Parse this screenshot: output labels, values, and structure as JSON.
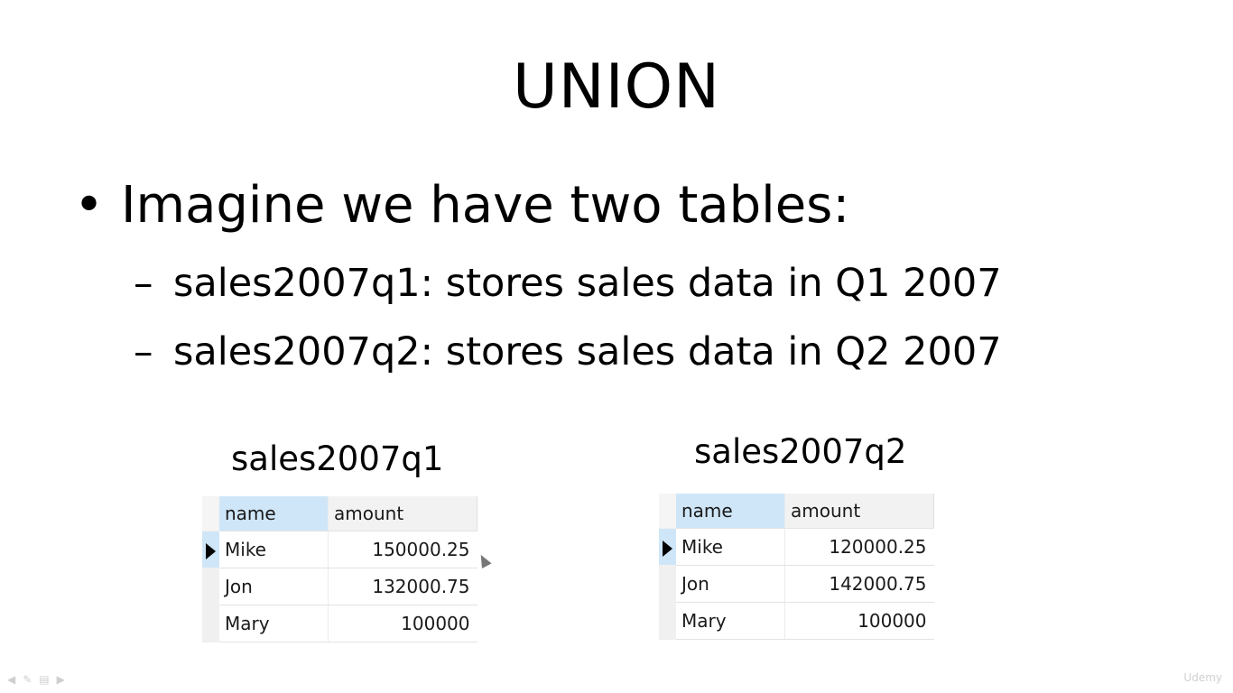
{
  "slide": {
    "title": "UNION",
    "bullet": "Imagine we have two tables:",
    "subbullets": [
      "sales2007q1: stores sales data in Q1 2007",
      "sales2007q2: stores sales data in Q2 2007"
    ],
    "bullet_glyph": "•",
    "dash_glyph": "–"
  },
  "tables": [
    {
      "caption": "sales2007q1",
      "columns": [
        "name",
        "amount"
      ],
      "rows": [
        {
          "name": "Mike",
          "amount": "150000.25"
        },
        {
          "name": "Jon",
          "amount": "132000.75"
        },
        {
          "name": "Mary",
          "amount": "100000"
        }
      ]
    },
    {
      "caption": "sales2007q2",
      "columns": [
        "name",
        "amount"
      ],
      "rows": [
        {
          "name": "Mike",
          "amount": "120000.25"
        },
        {
          "name": "Jon",
          "amount": "142000.75"
        },
        {
          "name": "Mary",
          "amount": "100000"
        }
      ]
    }
  ],
  "player": {
    "watermark": "Udemy",
    "control_icons": [
      "prev-icon",
      "pen-icon",
      "menu-icon",
      "next-icon"
    ]
  }
}
